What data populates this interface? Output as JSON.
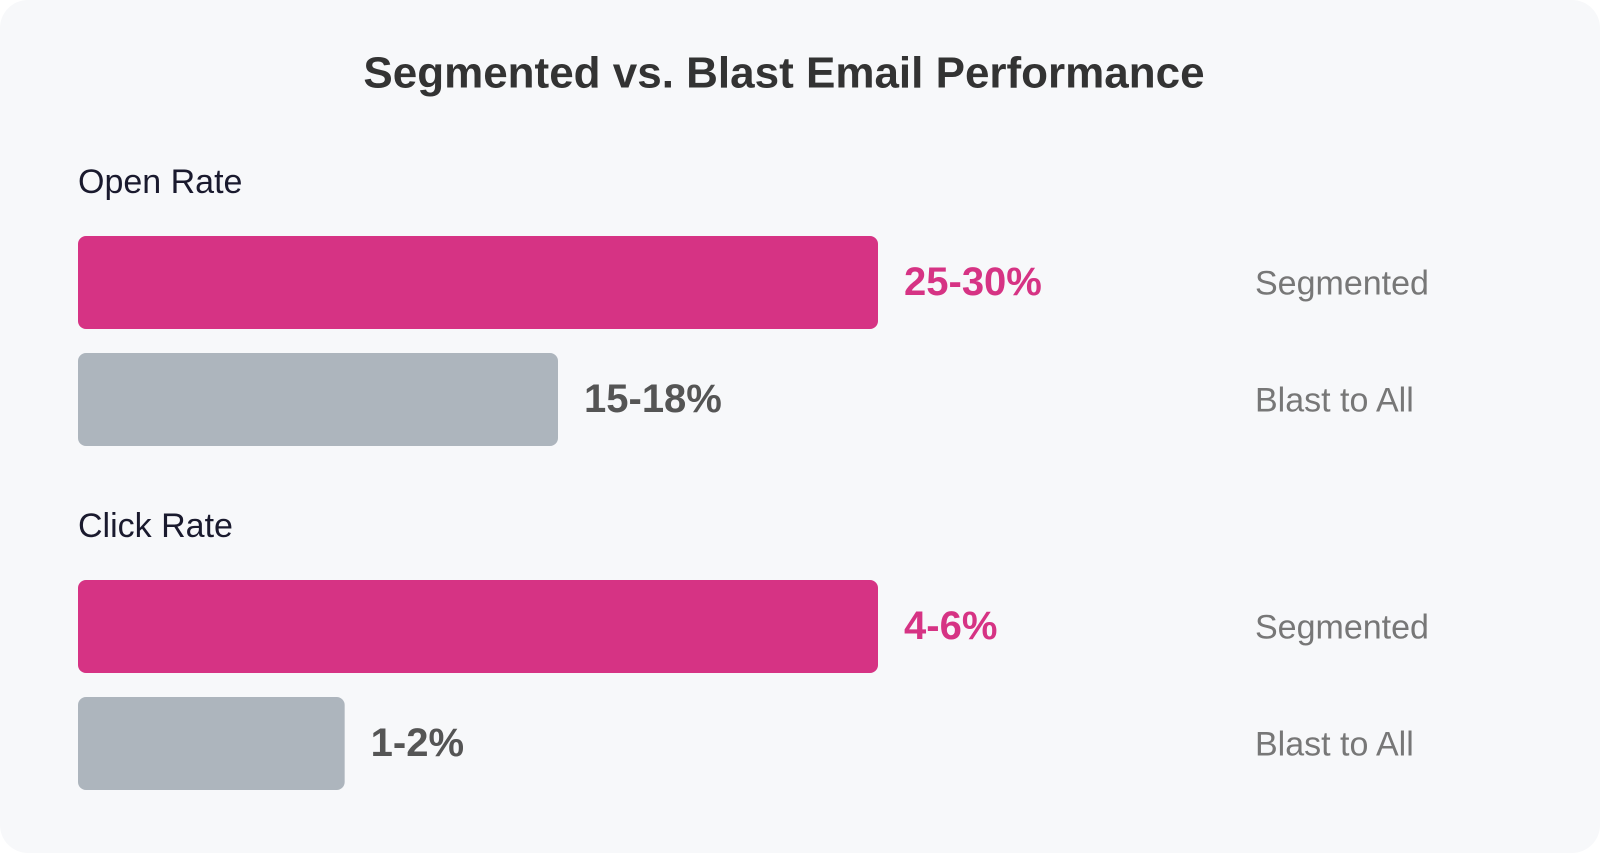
{
  "chart_data": {
    "type": "bar",
    "title": "Segmented vs. Blast Email Performance",
    "groups": [
      {
        "name": "Open Rate",
        "series": [
          {
            "name": "Segmented",
            "color": "#d63384",
            "values": [
              25,
              30
            ],
            "value_label": "25-30%"
          },
          {
            "name": "Blast to All",
            "color": "#adb5bd",
            "values": [
              15,
              18
            ],
            "value_label": "15-18%"
          }
        ]
      },
      {
        "name": "Click Rate",
        "series": [
          {
            "name": "Segmented",
            "color": "#d63384",
            "values": [
              4,
              6
            ],
            "value_label": "4-6%"
          },
          {
            "name": "Blast to All",
            "color": "#adb5bd",
            "values": [
              1,
              2
            ],
            "value_label": "1-2%"
          }
        ]
      }
    ]
  }
}
